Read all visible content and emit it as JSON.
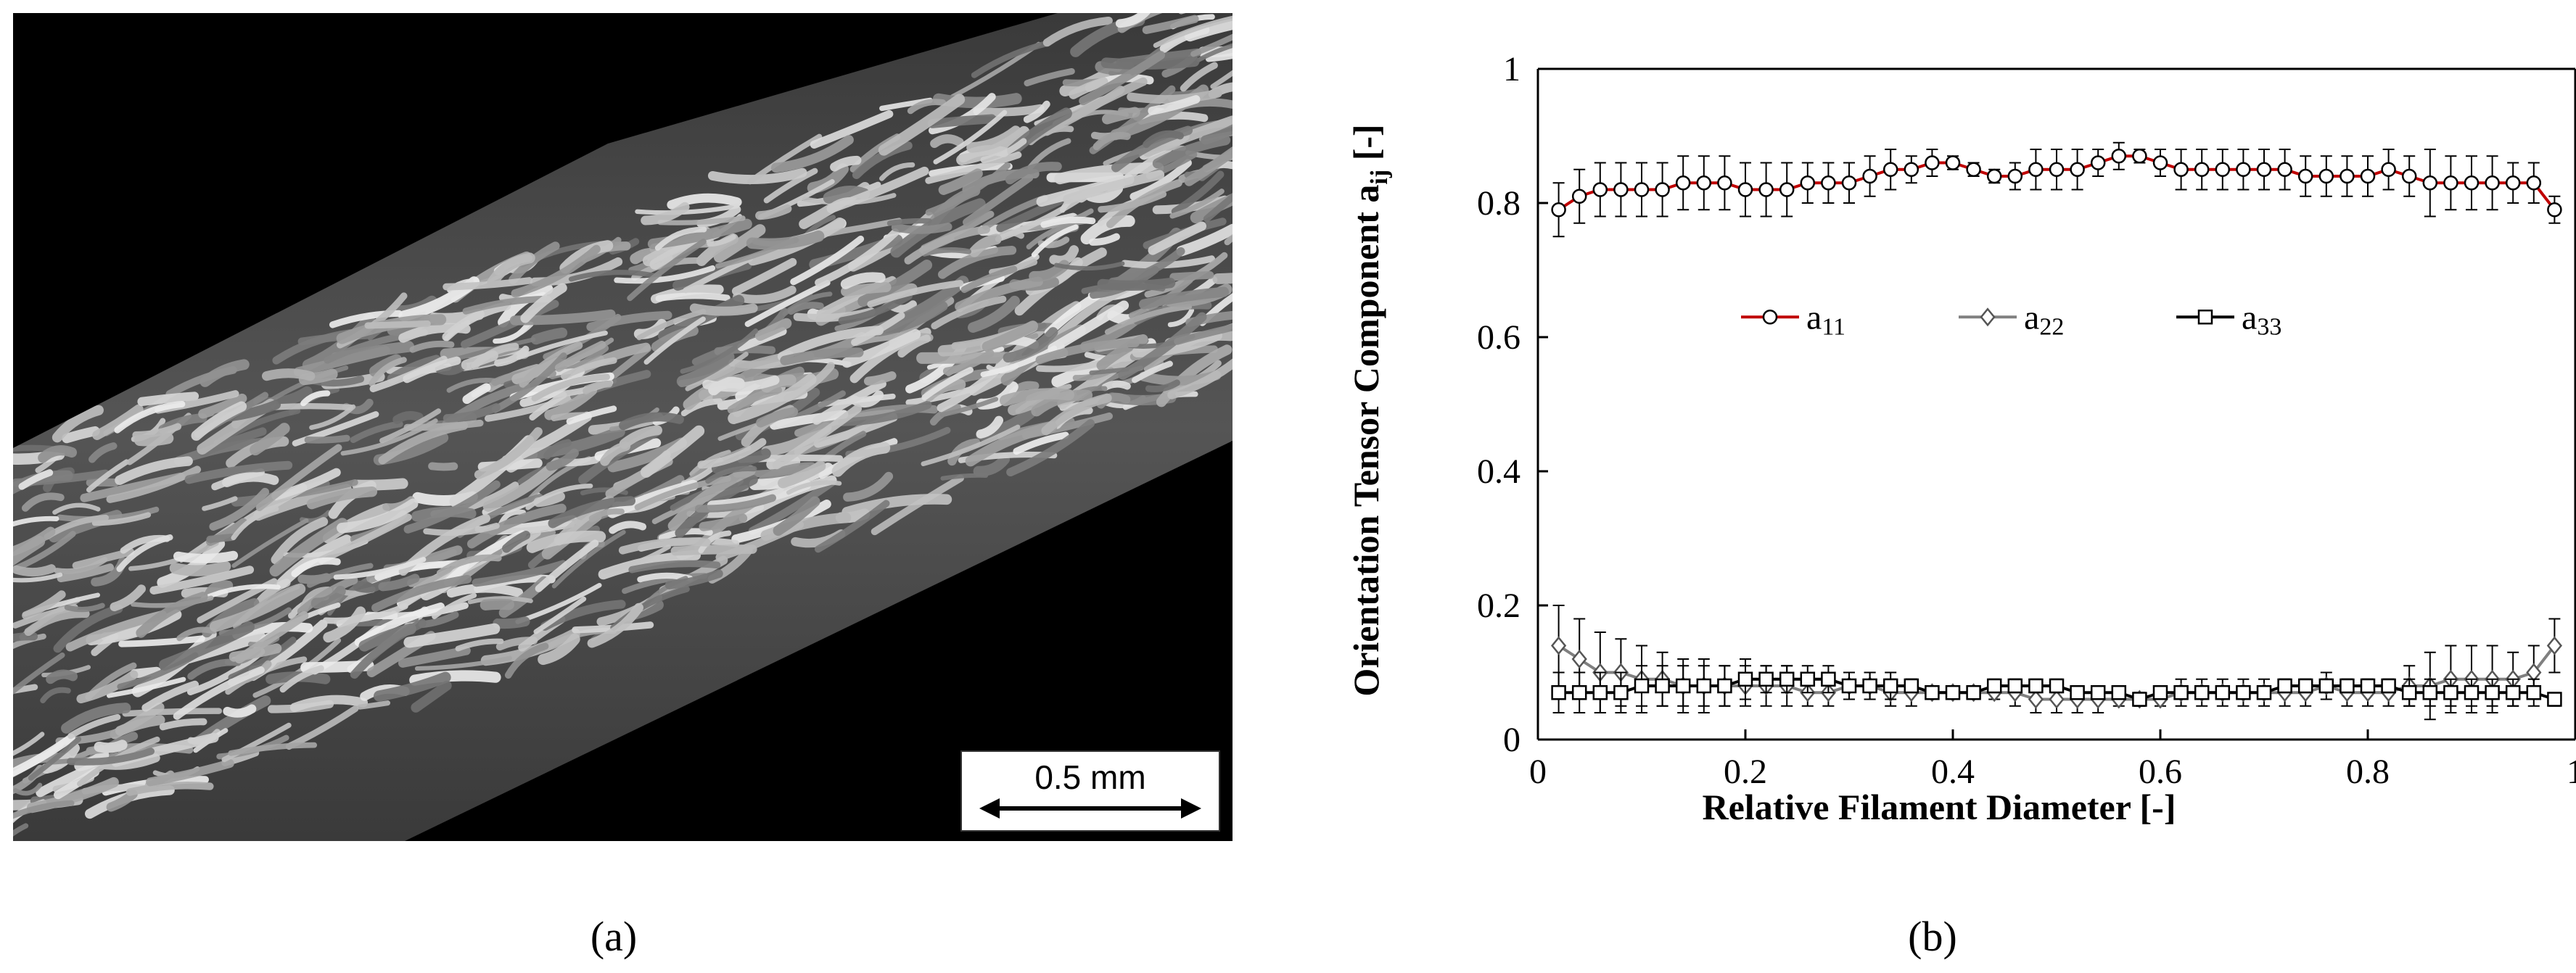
{
  "panel_a": {
    "scale_bar_label": "0.5 mm",
    "caption": "(a)"
  },
  "panel_b": {
    "caption": "(b)"
  },
  "chart_data": {
    "type": "line",
    "xlabel": "Relative Filament Diameter [-]",
    "ylabel": "Orientation Tensor Component a_ij [-]",
    "ylabel_main": "Orientation Tensor Component a",
    "ylabel_sub": "ij",
    "ylabel_tail": " [-]",
    "xlim": [
      0,
      1
    ],
    "ylim": [
      0,
      1
    ],
    "xticks": [
      "0",
      "0.2",
      "0.4",
      "0.6",
      "0.8",
      "1"
    ],
    "yticks": [
      "0",
      "0.2",
      "0.4",
      "0.6",
      "0.8",
      "1"
    ],
    "legend_position": "center",
    "grid": false,
    "series": [
      {
        "name": "a11",
        "legend_main": "a",
        "legend_sub": "11",
        "color": "#c00000",
        "marker": "circle",
        "x": [
          0.02,
          0.04,
          0.06,
          0.08,
          0.1,
          0.12,
          0.14,
          0.16,
          0.18,
          0.2,
          0.22,
          0.24,
          0.26,
          0.28,
          0.3,
          0.32,
          0.34,
          0.36,
          0.38,
          0.4,
          0.42,
          0.44,
          0.46,
          0.48,
          0.5,
          0.52,
          0.54,
          0.56,
          0.58,
          0.6,
          0.62,
          0.64,
          0.66,
          0.68,
          0.7,
          0.72,
          0.74,
          0.76,
          0.78,
          0.8,
          0.82,
          0.84,
          0.86,
          0.88,
          0.9,
          0.92,
          0.94,
          0.96,
          0.98
        ],
        "values": [
          0.79,
          0.81,
          0.82,
          0.82,
          0.82,
          0.82,
          0.83,
          0.83,
          0.83,
          0.82,
          0.82,
          0.82,
          0.83,
          0.83,
          0.83,
          0.84,
          0.85,
          0.85,
          0.86,
          0.86,
          0.85,
          0.84,
          0.84,
          0.85,
          0.85,
          0.85,
          0.86,
          0.87,
          0.87,
          0.86,
          0.85,
          0.85,
          0.85,
          0.85,
          0.85,
          0.85,
          0.84,
          0.84,
          0.84,
          0.84,
          0.85,
          0.84,
          0.83,
          0.83,
          0.83,
          0.83,
          0.83,
          0.83,
          0.79
        ],
        "errors": [
          0.04,
          0.04,
          0.04,
          0.04,
          0.04,
          0.04,
          0.04,
          0.04,
          0.04,
          0.04,
          0.04,
          0.04,
          0.03,
          0.03,
          0.03,
          0.03,
          0.03,
          0.02,
          0.02,
          0.01,
          0.01,
          0.01,
          0.02,
          0.03,
          0.03,
          0.03,
          0.02,
          0.02,
          0.01,
          0.02,
          0.03,
          0.03,
          0.03,
          0.03,
          0.03,
          0.03,
          0.03,
          0.03,
          0.03,
          0.03,
          0.03,
          0.03,
          0.05,
          0.04,
          0.04,
          0.04,
          0.03,
          0.03,
          0.02
        ]
      },
      {
        "name": "a22",
        "legend_main": "a",
        "legend_sub": "22",
        "color": "#808080",
        "marker": "diamond",
        "x": [
          0.02,
          0.04,
          0.06,
          0.08,
          0.1,
          0.12,
          0.14,
          0.16,
          0.18,
          0.2,
          0.22,
          0.24,
          0.26,
          0.28,
          0.3,
          0.32,
          0.34,
          0.36,
          0.38,
          0.4,
          0.42,
          0.44,
          0.46,
          0.48,
          0.5,
          0.52,
          0.54,
          0.56,
          0.58,
          0.6,
          0.62,
          0.64,
          0.66,
          0.68,
          0.7,
          0.72,
          0.74,
          0.76,
          0.78,
          0.8,
          0.82,
          0.84,
          0.86,
          0.88,
          0.9,
          0.92,
          0.94,
          0.96,
          0.98
        ],
        "values": [
          0.14,
          0.12,
          0.1,
          0.1,
          0.09,
          0.09,
          0.08,
          0.08,
          0.08,
          0.08,
          0.08,
          0.08,
          0.07,
          0.07,
          0.08,
          0.08,
          0.07,
          0.07,
          0.07,
          0.07,
          0.07,
          0.07,
          0.07,
          0.06,
          0.06,
          0.06,
          0.06,
          0.06,
          0.06,
          0.06,
          0.07,
          0.07,
          0.07,
          0.07,
          0.07,
          0.07,
          0.07,
          0.08,
          0.07,
          0.07,
          0.07,
          0.08,
          0.08,
          0.09,
          0.09,
          0.09,
          0.09,
          0.1,
          0.14
        ],
        "errors": [
          0.06,
          0.06,
          0.06,
          0.05,
          0.05,
          0.04,
          0.04,
          0.04,
          0.03,
          0.03,
          0.03,
          0.03,
          0.02,
          0.02,
          0.02,
          0.02,
          0.02,
          0.02,
          0.01,
          0.01,
          0.01,
          0.01,
          0.02,
          0.02,
          0.02,
          0.02,
          0.02,
          0.01,
          0.01,
          0.01,
          0.02,
          0.02,
          0.02,
          0.02,
          0.02,
          0.02,
          0.02,
          0.02,
          0.02,
          0.02,
          0.02,
          0.03,
          0.05,
          0.05,
          0.05,
          0.05,
          0.04,
          0.04,
          0.04
        ]
      },
      {
        "name": "a33",
        "legend_main": "a",
        "legend_sub": "33",
        "color": "#000000",
        "marker": "square",
        "x": [
          0.02,
          0.04,
          0.06,
          0.08,
          0.1,
          0.12,
          0.14,
          0.16,
          0.18,
          0.2,
          0.22,
          0.24,
          0.26,
          0.28,
          0.3,
          0.32,
          0.34,
          0.36,
          0.38,
          0.4,
          0.42,
          0.44,
          0.46,
          0.48,
          0.5,
          0.52,
          0.54,
          0.56,
          0.58,
          0.6,
          0.62,
          0.64,
          0.66,
          0.68,
          0.7,
          0.72,
          0.74,
          0.76,
          0.78,
          0.8,
          0.82,
          0.84,
          0.86,
          0.88,
          0.9,
          0.92,
          0.94,
          0.96,
          0.98
        ],
        "values": [
          0.07,
          0.07,
          0.07,
          0.07,
          0.08,
          0.08,
          0.08,
          0.08,
          0.08,
          0.09,
          0.09,
          0.09,
          0.09,
          0.09,
          0.08,
          0.08,
          0.08,
          0.08,
          0.07,
          0.07,
          0.07,
          0.08,
          0.08,
          0.08,
          0.08,
          0.07,
          0.07,
          0.07,
          0.06,
          0.07,
          0.07,
          0.07,
          0.07,
          0.07,
          0.07,
          0.08,
          0.08,
          0.08,
          0.08,
          0.08,
          0.08,
          0.07,
          0.07,
          0.07,
          0.07,
          0.07,
          0.07,
          0.07,
          0.06
        ],
        "errors": [
          0.03,
          0.03,
          0.03,
          0.03,
          0.03,
          0.03,
          0.03,
          0.03,
          0.03,
          0.03,
          0.02,
          0.02,
          0.02,
          0.02,
          0.02,
          0.02,
          0.02,
          0.01,
          0.01,
          0.01,
          0.01,
          0.01,
          0.01,
          0.01,
          0.01,
          0.01,
          0.01,
          0.01,
          0.01,
          0.01,
          0.01,
          0.01,
          0.01,
          0.01,
          0.01,
          0.01,
          0.01,
          0.01,
          0.01,
          0.01,
          0.01,
          0.02,
          0.02,
          0.02,
          0.02,
          0.02,
          0.02,
          0.02,
          0.01
        ]
      }
    ]
  }
}
